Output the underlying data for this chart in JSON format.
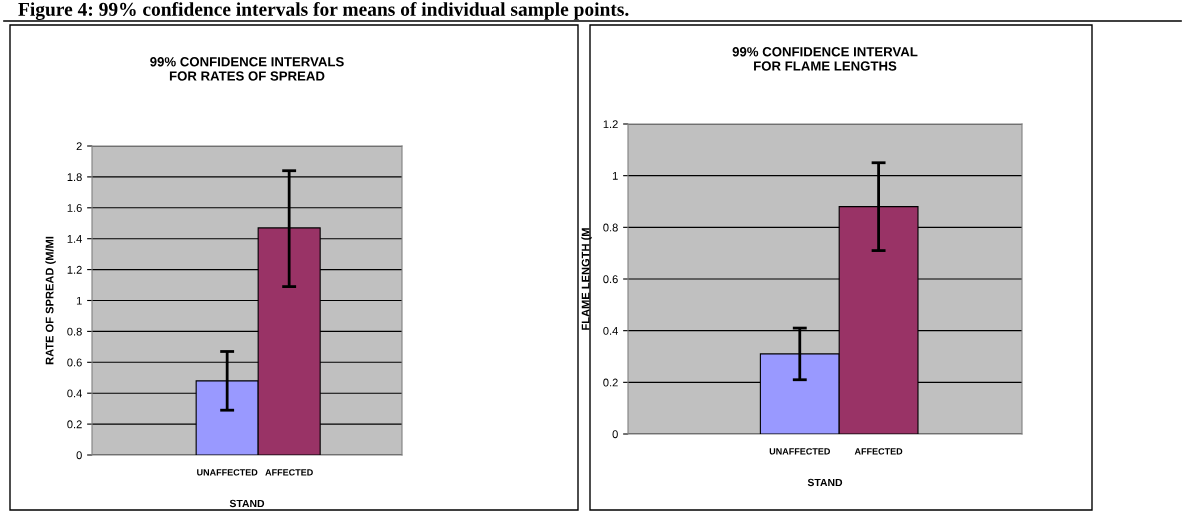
{
  "chart_data": [
    {
      "type": "bar",
      "title": "99% CONFIDENCE INTERVALS\nFOR RATES OF SPREAD",
      "xlabel": "STAND",
      "ylabel": "RATE OF SPREAD (M/MI",
      "annotations": [
        "Figure 4: 99% confidence intervals for means of individual sample points."
      ],
      "categories": [
        "UNAFFECTED",
        "AFFECTED"
      ],
      "values": [
        0.48,
        1.47
      ],
      "colors": [
        "#9999ff",
        "#993366"
      ],
      "errors": [
        [
          0.29,
          0.67
        ],
        [
          1.09,
          1.84
        ]
      ],
      "ylim": [
        0,
        2
      ],
      "yticks": [
        0,
        0.2,
        0.4,
        0.6,
        0.8,
        1,
        1.2,
        1.4,
        1.6,
        1.8,
        2
      ],
      "grid": "y"
    },
    {
      "type": "bar",
      "title": "99% CONFIDENCE INTERVAL\nFOR FLAME LENGTHS",
      "xlabel": "STAND",
      "ylabel": "FLAME LENGTH (M",
      "categories": [
        "UNAFFECTED",
        "AFFECTED"
      ],
      "values": [
        0.31,
        0.88
      ],
      "colors": [
        "#9999ff",
        "#993366"
      ],
      "errors": [
        [
          0.21,
          0.41
        ],
        [
          0.71,
          1.05
        ]
      ],
      "ylim": [
        0,
        1.2
      ],
      "yticks": [
        0,
        0.2,
        0.4,
        0.6,
        0.8,
        1,
        1.2
      ],
      "grid": "y"
    }
  ]
}
